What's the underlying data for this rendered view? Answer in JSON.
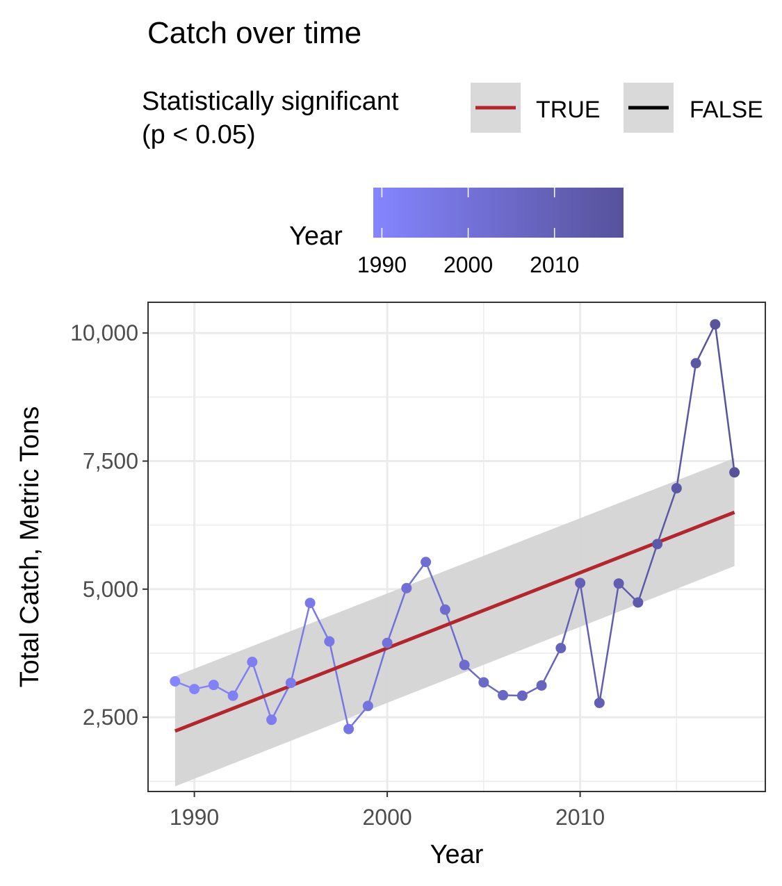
{
  "chart_data": {
    "type": "line",
    "title": "Catch over time",
    "xlabel": "Year",
    "ylabel": "Total Catch, Metric Tons",
    "xlim": [
      1987.6,
      2019.6
    ],
    "ylim": [
      1050,
      10600
    ],
    "x_ticks": [
      1990,
      2000,
      2010
    ],
    "x_tick_labels": [
      "1990",
      "2000",
      "2010"
    ],
    "y_ticks": [
      2500,
      5000,
      7500,
      10000
    ],
    "y_tick_labels": [
      "2,500",
      "5,000",
      "7,500",
      "10,000"
    ],
    "grid": true,
    "series": [
      {
        "x": [
          1989,
          1990,
          1991,
          1992,
          1993,
          1994,
          1995,
          1996,
          1997,
          1998,
          1999,
          2000,
          2001,
          2002,
          2003,
          2004,
          2005,
          2006,
          2007,
          2008,
          2009,
          2010,
          2011,
          2012,
          2013,
          2014,
          2015,
          2016,
          2017,
          2018
        ],
        "values": [
          3200,
          3050,
          3130,
          2920,
          3580,
          2450,
          3170,
          4730,
          3980,
          2270,
          2720,
          3950,
          5020,
          5530,
          4600,
          3520,
          3180,
          2930,
          2920,
          3120,
          3850,
          5120,
          2780,
          5110,
          4740,
          5880,
          6970,
          9410,
          10170,
          7280
        ]
      }
    ],
    "trend": {
      "x": [
        1989,
        2018
      ],
      "values": [
        2230,
        6500
      ],
      "ci_lower": [
        1150,
        5450
      ],
      "ci_upper": [
        3300,
        7560
      ],
      "color": "#B2262E"
    },
    "legend_significance": {
      "title_line1": "Statistically significant",
      "title_line2": "(p < 0.05)",
      "items": [
        {
          "label": "TRUE",
          "color": "#B2262E"
        },
        {
          "label": "FALSE",
          "color": "#000000"
        }
      ]
    },
    "legend_year": {
      "title": "Year",
      "range": [
        1989,
        2018
      ],
      "ticks": [
        1990,
        2000,
        2010
      ],
      "tick_labels": [
        "1990",
        "2000",
        "2010"
      ],
      "color_low": "#8585FF",
      "color_high": "#57529A"
    },
    "legend_placement": "top",
    "ci_color": "#D4D4D4"
  }
}
